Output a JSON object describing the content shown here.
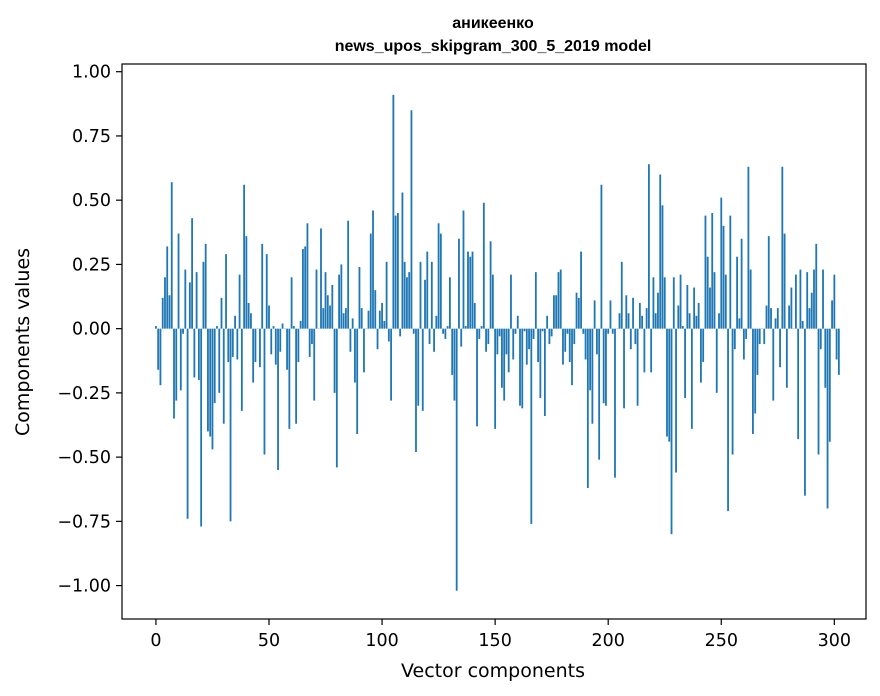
{
  "chart_data": {
    "type": "bar",
    "title": "аникеенко",
    "subtitle": "news_upos_skipgram_300_5_2019 model",
    "xlabel": "Vector components",
    "ylabel": "Components values",
    "xlim": [
      -15,
      314
    ],
    "ylim": [
      -1.13,
      1.03
    ],
    "xticks": [
      0,
      50,
      100,
      150,
      200,
      250,
      300
    ],
    "xtick_labels": [
      "0",
      "50",
      "100",
      "150",
      "200",
      "250",
      "300"
    ],
    "yticks": [
      1.0,
      0.75,
      0.5,
      0.25,
      0.0,
      -0.25,
      -0.5,
      -0.75,
      -1.0
    ],
    "ytick_labels": [
      "1.00",
      "0.75",
      "0.50",
      "0.25",
      "0.00",
      "−0.25",
      "−0.50",
      "−0.75",
      "−1.00"
    ],
    "bar_color": "#1f77b4",
    "grid": false,
    "series": [
      {
        "values": [
          0.01,
          -0.16,
          -0.22,
          0.12,
          0.2,
          0.32,
          0.13,
          0.57,
          -0.35,
          -0.28,
          0.37,
          -0.24,
          -0.02,
          0.23,
          -0.74,
          0.18,
          0.43,
          -0.19,
          0.22,
          -0.2,
          -0.77,
          0.26,
          0.33,
          -0.4,
          -0.42,
          -0.47,
          -0.29,
          0.01,
          -0.25,
          0.12,
          -0.37,
          0.29,
          -0.13,
          -0.75,
          -0.11,
          0.05,
          -0.12,
          0.21,
          -0.32,
          0.56,
          0.36,
          0.1,
          0.06,
          -0.21,
          -0.13,
          0.0,
          -0.15,
          0.33,
          -0.49,
          0.29,
          0.09,
          -0.1,
          0.01,
          -0.14,
          -0.55,
          -0.09,
          0.02,
          0.0,
          -0.16,
          -0.39,
          0.2,
          0.01,
          -0.37,
          -0.13,
          0.03,
          0.31,
          0.32,
          0.41,
          -0.11,
          -0.06,
          -0.28,
          0.23,
          0.0,
          0.39,
          0.08,
          0.22,
          0.13,
          0.09,
          0.17,
          -0.25,
          -0.54,
          0.21,
          0.25,
          0.06,
          0.08,
          0.42,
          -0.09,
          0.04,
          -0.21,
          -0.41,
          0.24,
          0.08,
          -0.17,
          0.0,
          0.07,
          0.37,
          0.46,
          0.15,
          -0.08,
          0.07,
          0.1,
          0.03,
          0.26,
          -0.05,
          -0.28,
          0.91,
          0.44,
          0.45,
          -0.03,
          0.53,
          0.26,
          0.2,
          0.22,
          0.85,
          -0.02,
          -0.48,
          -0.3,
          0.26,
          -0.32,
          0.19,
          0.3,
          -0.06,
          0.26,
          -0.09,
          0.05,
          0.41,
          0.37,
          -0.02,
          -0.04,
          0.01,
          0.2,
          -0.18,
          -0.28,
          -1.02,
          0.35,
          -0.07,
          0.46,
          0.01,
          0.3,
          0.28,
          0.3,
          0.1,
          -0.38,
          -0.04,
          0.01,
          0.49,
          -0.09,
          -0.06,
          0.34,
          0.21,
          -0.39,
          -0.1,
          -0.03,
          -0.23,
          -0.28,
          -0.1,
          -0.17,
          0.21,
          -0.12,
          -0.02,
          0.05,
          -0.3,
          -0.31,
          -0.01,
          -0.14,
          -0.08,
          -0.76,
          -0.04,
          0.22,
          -0.13,
          -0.27,
          -0.01,
          -0.34,
          0.05,
          -0.06,
          -0.03,
          0.13,
          0.13,
          0.22,
          0.23,
          -0.14,
          -0.09,
          -0.02,
          -0.13,
          -0.22,
          -0.06,
          0.14,
          0.12,
          0.3,
          -0.02,
          -0.12,
          -0.62,
          -0.24,
          -0.37,
          0.11,
          -0.1,
          -0.51,
          0.56,
          -0.29,
          -0.3,
          -0.02,
          0.11,
          -0.02,
          -0.58,
          0.0,
          0.06,
          0.26,
          -0.31,
          0.13,
          0.06,
          -0.08,
          0.12,
          -0.06,
          -0.3,
          0.1,
          0.05,
          -0.17,
          0.08,
          0.64,
          -0.17,
          0.2,
          0.06,
          0.14,
          0.6,
          0.48,
          0.2,
          -0.42,
          -0.44,
          -0.8,
          0.2,
          -0.56,
          0.09,
          0.21,
          0.01,
          -0.27,
          0.17,
          0.06,
          -0.39,
          0.16,
          0.05,
          0.1,
          -0.21,
          -0.13,
          0.44,
          0.28,
          0.16,
          0.45,
          0.22,
          -0.25,
          0.06,
          0.51,
          0.4,
          0.21,
          -0.71,
          0.44,
          -0.49,
          -0.08,
          0.28,
          0.04,
          0.35,
          -0.12,
          -0.04,
          0.63,
          0.23,
          -0.41,
          -0.33,
          -0.18,
          -0.06,
          0.0,
          -0.06,
          0.09,
          0.36,
          0.08,
          -0.28,
          0.04,
          0.08,
          -0.15,
          0.63,
          0.37,
          -0.23,
          0.09,
          0.16,
          0.0,
          0.21,
          -0.43,
          0.23,
          0.03,
          -0.65,
          0.22,
          0.08,
          0.14,
          0.23,
          0.33,
          -0.49,
          -0.08,
          0.23,
          -0.23,
          -0.7,
          -0.44,
          0.11,
          0.21,
          -0.12,
          -0.18
        ]
      }
    ]
  }
}
